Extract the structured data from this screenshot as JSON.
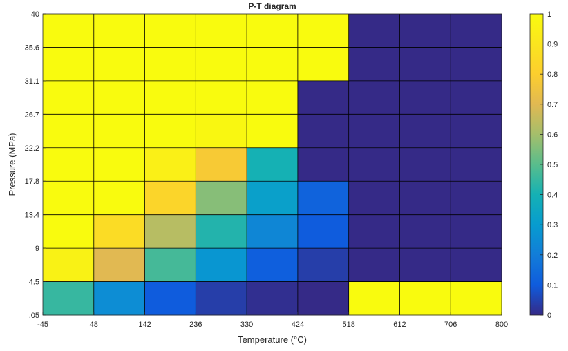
{
  "chart_data": {
    "type": "heatmap",
    "title": "P-T diagram",
    "xlabel": "Temperature (°C)",
    "ylabel": "Pressure (MPa)",
    "x_ticks": [
      "-45",
      "48",
      "142",
      "236",
      "330",
      "424",
      "518",
      "612",
      "706",
      "800"
    ],
    "y_ticks": [
      ".05",
      "4.5",
      "9",
      "13.4",
      "17.8",
      "22.2",
      "26.7",
      "31.1",
      "35.6",
      "40"
    ],
    "colorbar": {
      "range": [
        0,
        1
      ],
      "ticks": [
        "0",
        "0.1",
        "0.2",
        "0.3",
        "0.4",
        "0.5",
        "0.6",
        "0.7",
        "0.8",
        "0.9",
        "1"
      ]
    },
    "grid_rows_top_to_bottom": [
      [
        1,
        1,
        1,
        1,
        1,
        1,
        0,
        0,
        0
      ],
      [
        1,
        1,
        1,
        1,
        1,
        1,
        0,
        0,
        0
      ],
      [
        1,
        1,
        1,
        1,
        1,
        0,
        0,
        0,
        0
      ],
      [
        1,
        1,
        1,
        0.98,
        1,
        0,
        0,
        0,
        0
      ],
      [
        1,
        1,
        0.95,
        0.78,
        0.4,
        0,
        0,
        0,
        0
      ],
      [
        1,
        1,
        0.83,
        0.56,
        0.32,
        0.12,
        0,
        0,
        0
      ],
      [
        1,
        0.86,
        0.63,
        0.42,
        0.23,
        0.1,
        0,
        0,
        0
      ],
      [
        0.96,
        0.7,
        0.47,
        0.28,
        0.11,
        0.04,
        0,
        0,
        0
      ],
      [
        0.45,
        0.25,
        0.1,
        0.04,
        0.01,
        0,
        1,
        1,
        1
      ]
    ]
  }
}
